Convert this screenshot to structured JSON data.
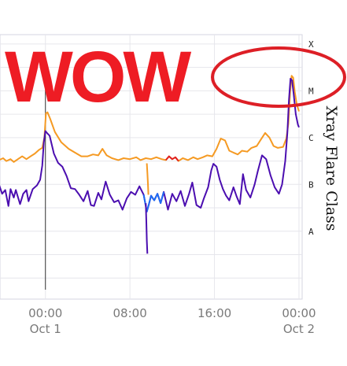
{
  "overlay": {
    "text": "WOW",
    "color": "#ee1c24"
  },
  "chart_data": {
    "type": "line",
    "y_axis_label": "Xray Flare Class",
    "y_scale": "log",
    "class_labels": [
      "A",
      "B",
      "C",
      "M",
      "X"
    ],
    "x_ticks": [
      {
        "hours": 0,
        "time": "00:00",
        "date": "Oct 1"
      },
      {
        "hours": 8,
        "time": "08:00",
        "date": ""
      },
      {
        "hours": 16,
        "time": "16:00",
        "date": ""
      },
      {
        "hours": 24,
        "time": "00:00",
        "date": "Oct 2"
      }
    ],
    "xlim_hours": [
      -4.3,
      24.3
    ],
    "ylim_log10_wm2": [
      -8.95,
      -3.3
    ],
    "grid": true,
    "event_marker_hours": 0,
    "series": [
      {
        "color": "#f59a23",
        "highlight_color": "#e02020",
        "highlight_range_hours": [
          11.1,
          12.6
        ],
        "points": [
          [
            -4.4,
            -5.98
          ],
          [
            -4.0,
            -5.94
          ],
          [
            -3.7,
            -6.0
          ],
          [
            -3.3,
            -5.96
          ],
          [
            -3.0,
            -6.02
          ],
          [
            -2.6,
            -5.96
          ],
          [
            -2.2,
            -5.9
          ],
          [
            -1.8,
            -5.96
          ],
          [
            -1.4,
            -5.9
          ],
          [
            -1.0,
            -5.84
          ],
          [
            -0.6,
            -5.76
          ],
          [
            -0.3,
            -5.72
          ],
          [
            -0.1,
            -5.5
          ],
          [
            0.05,
            -4.98
          ],
          [
            0.2,
            -4.96
          ],
          [
            0.45,
            -5.1
          ],
          [
            0.9,
            -5.38
          ],
          [
            1.5,
            -5.6
          ],
          [
            2.2,
            -5.74
          ],
          [
            2.8,
            -5.82
          ],
          [
            3.4,
            -5.9
          ],
          [
            4.0,
            -5.9
          ],
          [
            4.5,
            -5.86
          ],
          [
            5.0,
            -5.88
          ],
          [
            5.4,
            -5.74
          ],
          [
            5.8,
            -5.88
          ],
          [
            6.3,
            -5.94
          ],
          [
            6.9,
            -5.98
          ],
          [
            7.4,
            -5.94
          ],
          [
            8.0,
            -5.96
          ],
          [
            8.6,
            -5.92
          ],
          [
            9.0,
            -5.98
          ],
          [
            9.5,
            -5.94
          ],
          [
            10.0,
            -5.96
          ],
          [
            10.5,
            -5.92
          ],
          [
            11.0,
            -5.96
          ],
          [
            11.4,
            -5.98
          ],
          [
            11.7,
            -5.9
          ],
          [
            12.0,
            -5.96
          ],
          [
            12.3,
            -5.92
          ],
          [
            12.6,
            -6.0
          ],
          [
            13.0,
            -5.94
          ],
          [
            13.5,
            -5.98
          ],
          [
            14.0,
            -5.92
          ],
          [
            14.4,
            -5.96
          ],
          [
            14.9,
            -5.92
          ],
          [
            15.3,
            -5.88
          ],
          [
            15.8,
            -5.9
          ],
          [
            16.2,
            -5.74
          ],
          [
            16.6,
            -5.52
          ],
          [
            17.0,
            -5.56
          ],
          [
            17.4,
            -5.78
          ],
          [
            17.8,
            -5.82
          ],
          [
            18.2,
            -5.86
          ],
          [
            18.6,
            -5.78
          ],
          [
            19.1,
            -5.8
          ],
          [
            19.5,
            -5.72
          ],
          [
            20.0,
            -5.68
          ],
          [
            20.4,
            -5.54
          ],
          [
            20.8,
            -5.4
          ],
          [
            21.2,
            -5.5
          ],
          [
            21.6,
            -5.68
          ],
          [
            22.0,
            -5.72
          ],
          [
            22.5,
            -5.7
          ],
          [
            22.8,
            -5.52
          ],
          [
            23.0,
            -5.2
          ],
          [
            23.15,
            -4.55
          ],
          [
            23.3,
            -4.18
          ],
          [
            23.45,
            -4.22
          ],
          [
            23.6,
            -4.52
          ],
          [
            23.8,
            -4.8
          ],
          [
            24.0,
            -4.94
          ]
        ]
      },
      {
        "color": "#f59a23",
        "points": [
          [
            9.6,
            -6.05
          ],
          [
            9.65,
            -6.25
          ],
          [
            9.7,
            -6.48
          ],
          [
            9.75,
            -6.72
          ]
        ]
      },
      {
        "color": "#4b0eb0",
        "highlight_color": "#1e6bf2",
        "highlight_range_hours": [
          9.3,
          11.2
        ],
        "points": [
          [
            -4.4,
            -6.5
          ],
          [
            -4.1,
            -6.7
          ],
          [
            -3.8,
            -6.62
          ],
          [
            -3.5,
            -6.96
          ],
          [
            -3.3,
            -6.6
          ],
          [
            -3.0,
            -6.78
          ],
          [
            -2.8,
            -6.62
          ],
          [
            -2.4,
            -6.92
          ],
          [
            -2.1,
            -6.7
          ],
          [
            -1.8,
            -6.62
          ],
          [
            -1.6,
            -6.86
          ],
          [
            -1.2,
            -6.6
          ],
          [
            -0.8,
            -6.52
          ],
          [
            -0.5,
            -6.4
          ],
          [
            -0.3,
            -6.1
          ],
          [
            -0.15,
            -5.6
          ],
          [
            0.0,
            -5.36
          ],
          [
            0.15,
            -5.4
          ],
          [
            0.4,
            -5.46
          ],
          [
            0.8,
            -5.84
          ],
          [
            1.2,
            -6.04
          ],
          [
            1.6,
            -6.12
          ],
          [
            2.0,
            -6.32
          ],
          [
            2.4,
            -6.58
          ],
          [
            2.8,
            -6.6
          ],
          [
            3.2,
            -6.72
          ],
          [
            3.6,
            -6.86
          ],
          [
            4.0,
            -6.64
          ],
          [
            4.3,
            -6.94
          ],
          [
            4.6,
            -6.96
          ],
          [
            5.0,
            -6.68
          ],
          [
            5.3,
            -6.82
          ],
          [
            5.7,
            -6.44
          ],
          [
            6.1,
            -6.72
          ],
          [
            6.5,
            -6.88
          ],
          [
            6.9,
            -6.84
          ],
          [
            7.3,
            -7.04
          ],
          [
            7.7,
            -6.8
          ],
          [
            8.1,
            -6.66
          ],
          [
            8.5,
            -6.72
          ],
          [
            8.9,
            -6.54
          ],
          [
            9.3,
            -6.72
          ],
          [
            9.6,
            -7.08
          ],
          [
            9.8,
            -6.92
          ],
          [
            10.0,
            -6.74
          ],
          [
            10.3,
            -6.84
          ],
          [
            10.6,
            -6.7
          ],
          [
            10.9,
            -6.9
          ],
          [
            11.2,
            -6.66
          ],
          [
            11.6,
            -7.04
          ],
          [
            12.0,
            -6.7
          ],
          [
            12.4,
            -6.86
          ],
          [
            12.8,
            -6.64
          ],
          [
            13.2,
            -6.96
          ],
          [
            13.6,
            -6.7
          ],
          [
            13.9,
            -6.46
          ],
          [
            14.3,
            -6.94
          ],
          [
            14.7,
            -7.0
          ],
          [
            15.0,
            -6.8
          ],
          [
            15.4,
            -6.56
          ],
          [
            15.7,
            -6.2
          ],
          [
            15.9,
            -6.06
          ],
          [
            16.2,
            -6.12
          ],
          [
            16.5,
            -6.4
          ],
          [
            16.8,
            -6.6
          ],
          [
            17.1,
            -6.74
          ],
          [
            17.4,
            -6.84
          ],
          [
            17.8,
            -6.56
          ],
          [
            18.1,
            -6.76
          ],
          [
            18.4,
            -6.92
          ],
          [
            18.7,
            -6.28
          ],
          [
            19.0,
            -6.62
          ],
          [
            19.4,
            -6.78
          ],
          [
            19.8,
            -6.5
          ],
          [
            20.1,
            -6.22
          ],
          [
            20.5,
            -5.88
          ],
          [
            20.9,
            -5.96
          ],
          [
            21.3,
            -6.3
          ],
          [
            21.7,
            -6.56
          ],
          [
            22.1,
            -6.7
          ],
          [
            22.4,
            -6.5
          ],
          [
            22.7,
            -6.0
          ],
          [
            22.9,
            -5.4
          ],
          [
            23.05,
            -4.7
          ],
          [
            23.2,
            -4.24
          ],
          [
            23.35,
            -4.28
          ],
          [
            23.5,
            -4.58
          ],
          [
            23.7,
            -5.0
          ],
          [
            23.9,
            -5.22
          ],
          [
            24.0,
            -5.28
          ]
        ]
      },
      {
        "color": "#4b0eb0",
        "points": [
          [
            9.5,
            -6.9
          ],
          [
            9.55,
            -7.3
          ],
          [
            9.6,
            -7.7
          ],
          [
            9.65,
            -7.98
          ]
        ]
      }
    ],
    "annotation": {
      "shape": "ellipse",
      "color": "#dd1f26"
    }
  }
}
